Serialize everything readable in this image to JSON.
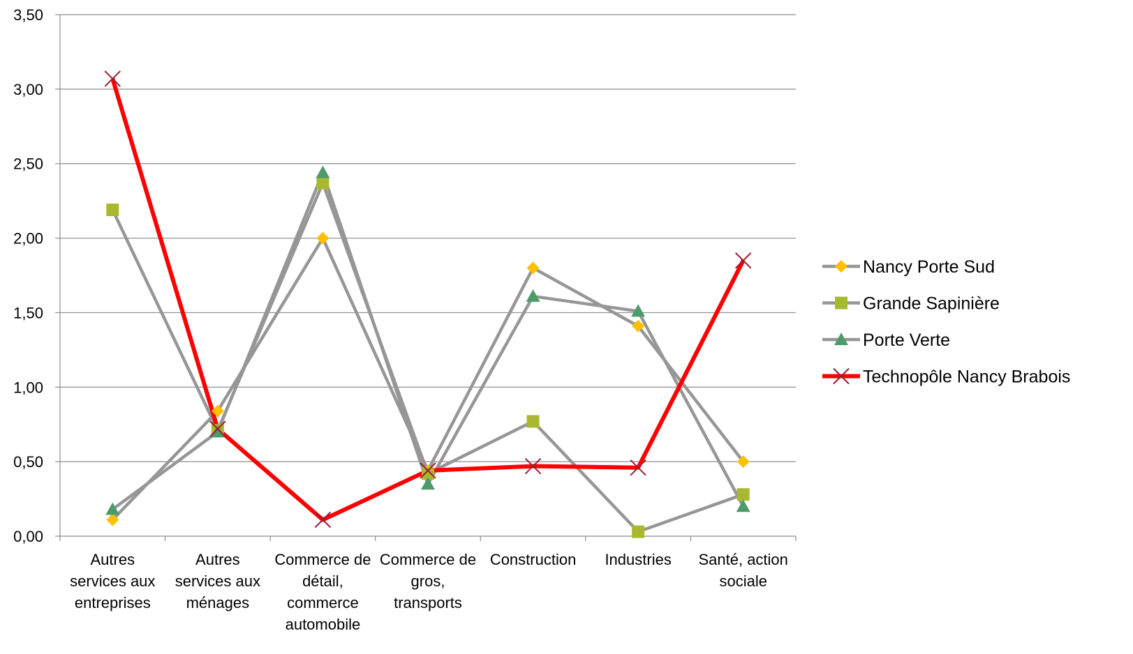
{
  "chart_data": {
    "type": "line",
    "categories": [
      [
        "Autres",
        "services aux",
        "entreprises"
      ],
      [
        "Autres",
        "services aux",
        "ménages"
      ],
      [
        "Commerce de",
        "détail,",
        "commerce",
        "automobile"
      ],
      [
        "Commerce de",
        "gros,",
        "transports"
      ],
      [
        "Construction"
      ],
      [
        "Industries"
      ],
      [
        "Santé, action",
        "sociale"
      ]
    ],
    "y_ticks": [
      "0,00",
      "0,50",
      "1,00",
      "1,50",
      "2,00",
      "2,50",
      "3,00",
      "3,50"
    ],
    "ylim": [
      0,
      3.5
    ],
    "grid": true,
    "legend_position": "right",
    "series": [
      {
        "name": "Nancy Porte Sud",
        "marker": "diamond",
        "line_color": "#969696",
        "marker_color": "#FFC000",
        "values": [
          0.11,
          0.84,
          2.0,
          0.44,
          1.8,
          1.41,
          0.5
        ]
      },
      {
        "name": "Grande Sapinière",
        "marker": "square",
        "line_color": "#969696",
        "marker_color": "#A9B92F",
        "values": [
          2.19,
          0.71,
          2.37,
          0.42,
          0.77,
          0.03,
          0.28
        ]
      },
      {
        "name": "Porte Verte",
        "marker": "triangle",
        "line_color": "#969696",
        "marker_color": "#4E9A6B",
        "values": [
          0.18,
          0.7,
          2.44,
          0.35,
          1.61,
          1.51,
          0.2
        ]
      },
      {
        "name": "Technopôle Nancy Brabois",
        "marker": "x",
        "line_color": "#FF0000",
        "marker_color": "#9B1B30",
        "values": [
          3.07,
          0.72,
          0.11,
          0.44,
          0.47,
          0.46,
          1.85
        ]
      }
    ]
  }
}
